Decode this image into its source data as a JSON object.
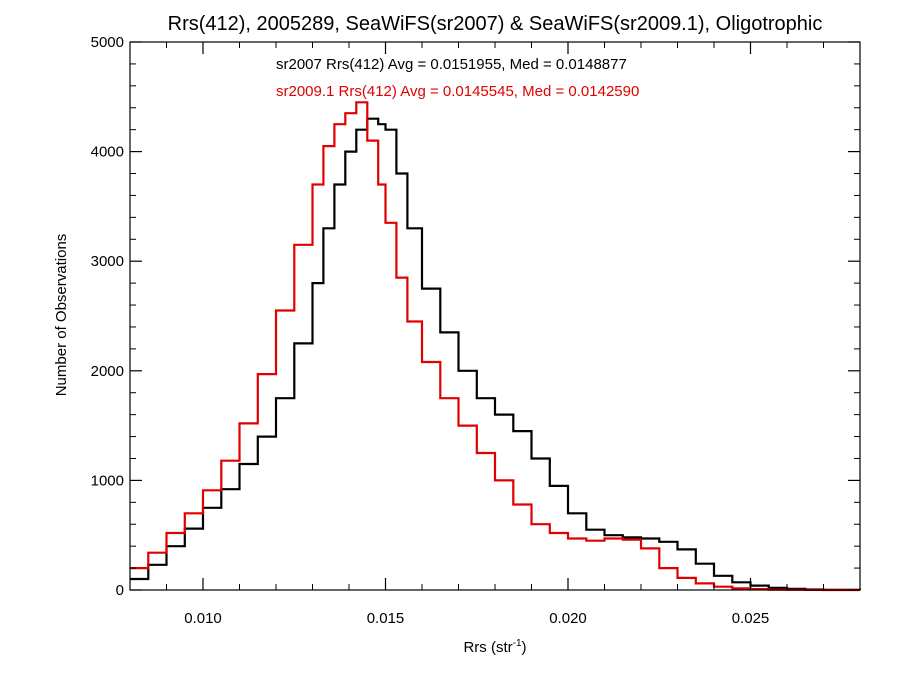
{
  "colors": {
    "series_black": "#000000",
    "series_red": "#e00000",
    "axis": "#000000",
    "background": "#ffffff"
  },
  "chart_data": {
    "type": "line",
    "title": "Rrs(412), 2005289, SeaWiFS(sr2007) & SeaWiFS(sr2009.1), Oligotrophic",
    "xlabel_main": "Rrs (str",
    "xlabel_sup": "-1",
    "xlabel_tail": ")",
    "ylabel": "Number of Observations",
    "xlim": [
      0.008,
      0.028
    ],
    "ylim": [
      0,
      5000
    ],
    "xticks": [
      0.01,
      0.015,
      0.02,
      0.025
    ],
    "xtick_labels": [
      "0.010",
      "0.015",
      "0.020",
      "0.025"
    ],
    "yticks": [
      0,
      1000,
      2000,
      3000,
      4000,
      5000
    ],
    "ytick_labels": [
      "0",
      "1000",
      "2000",
      "3000",
      "4000",
      "5000"
    ],
    "step": true,
    "grid": false,
    "annotations": [
      {
        "text": "sr2007 Rrs(412) Avg = 0.0151955, Med = 0.0148877",
        "color": "#000000"
      },
      {
        "text": "sr2009.1 Rrs(412) Avg = 0.0145545, Med = 0.0142590",
        "color": "#e00000"
      }
    ],
    "series": [
      {
        "color": "#000000",
        "x": [
          0.008,
          0.0085,
          0.009,
          0.0095,
          0.01,
          0.0105,
          0.011,
          0.0115,
          0.012,
          0.0125,
          0.013,
          0.0133,
          0.0136,
          0.0139,
          0.0142,
          0.0145,
          0.0148,
          0.015,
          0.0153,
          0.0156,
          0.016,
          0.0165,
          0.017,
          0.0175,
          0.018,
          0.0185,
          0.019,
          0.0195,
          0.02,
          0.0205,
          0.021,
          0.0215,
          0.022,
          0.0225,
          0.023,
          0.0235,
          0.024,
          0.0245,
          0.025,
          0.0255,
          0.026,
          0.0265,
          0.027,
          0.028
        ],
        "y": [
          100,
          230,
          400,
          560,
          750,
          920,
          1150,
          1400,
          1750,
          2250,
          2800,
          3300,
          3700,
          4000,
          4200,
          4300,
          4250,
          4200,
          3800,
          3300,
          2750,
          2350,
          2000,
          1750,
          1600,
          1450,
          1200,
          950,
          700,
          550,
          500,
          480,
          470,
          440,
          370,
          240,
          130,
          70,
          40,
          20,
          10,
          5,
          2,
          0
        ]
      },
      {
        "color": "#e00000",
        "x": [
          0.008,
          0.0085,
          0.009,
          0.0095,
          0.01,
          0.0105,
          0.011,
          0.0115,
          0.012,
          0.0125,
          0.013,
          0.0133,
          0.0136,
          0.0139,
          0.0142,
          0.0145,
          0.0148,
          0.015,
          0.0153,
          0.0156,
          0.016,
          0.0165,
          0.017,
          0.0175,
          0.018,
          0.0185,
          0.019,
          0.0195,
          0.02,
          0.0205,
          0.021,
          0.0215,
          0.022,
          0.0225,
          0.023,
          0.0235,
          0.024,
          0.0245,
          0.025,
          0.0255,
          0.026,
          0.0265,
          0.027,
          0.028
        ],
        "y": [
          200,
          340,
          520,
          700,
          910,
          1180,
          1520,
          1970,
          2550,
          3150,
          3700,
          4050,
          4250,
          4350,
          4450,
          4100,
          3700,
          3350,
          2850,
          2450,
          2080,
          1750,
          1500,
          1250,
          1000,
          780,
          600,
          520,
          470,
          450,
          470,
          460,
          380,
          200,
          110,
          60,
          30,
          15,
          8,
          4,
          2,
          1,
          0,
          0
        ]
      }
    ]
  }
}
